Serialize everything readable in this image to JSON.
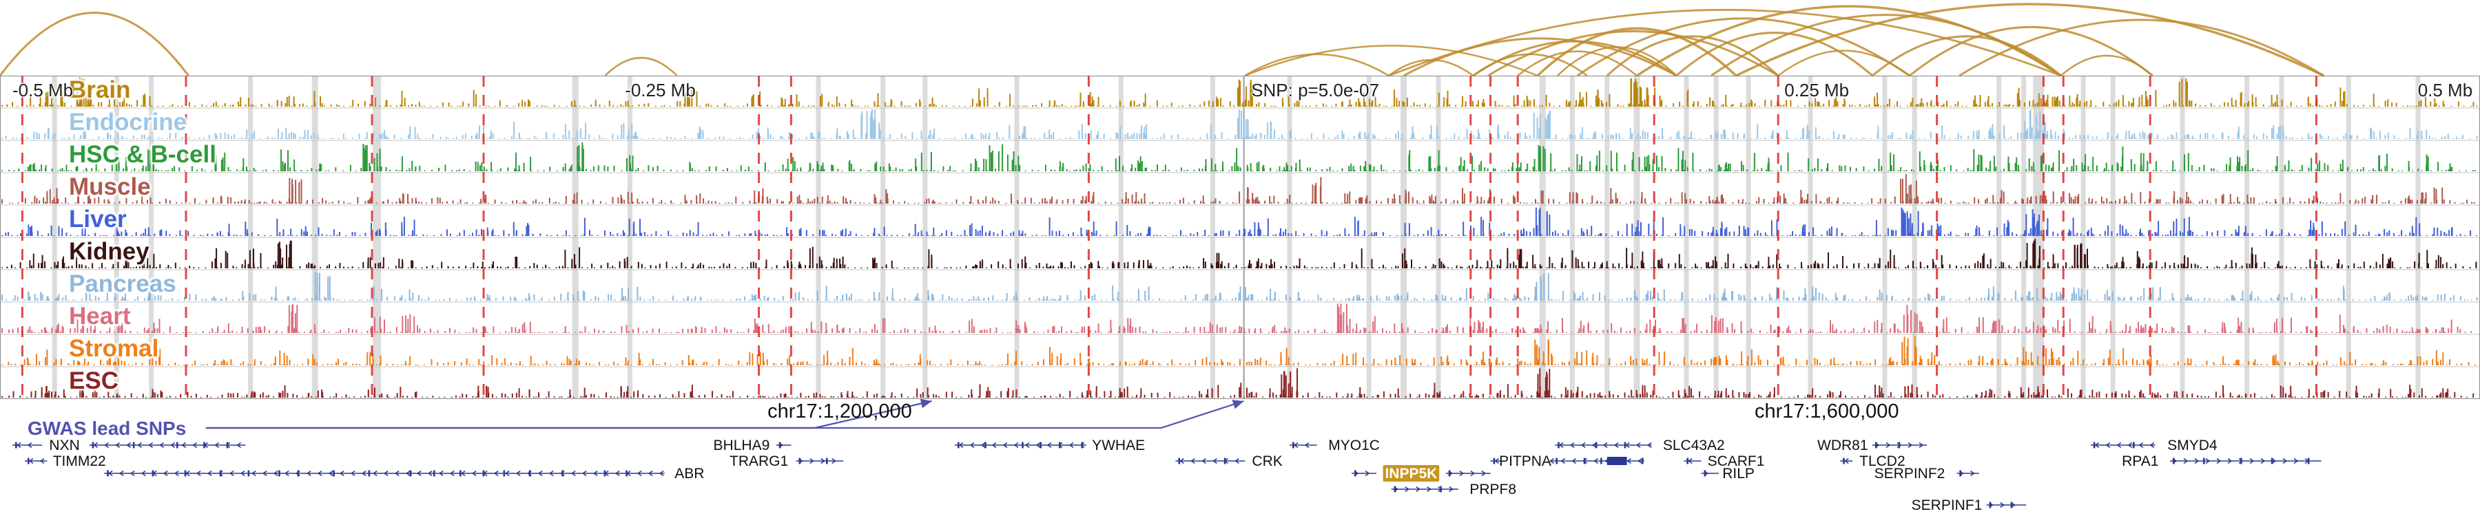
{
  "chart_data": {
    "type": "genome-browser",
    "seed": 11,
    "colors": {
      "arc": "#BE8C2E",
      "red_line": "#E03434",
      "gray_band": "rgba(128,128,128,0.28)",
      "snp_line": "#9a9a9a",
      "separator": "#c3c3c3",
      "frame": "#888888",
      "gene": "#2B3890",
      "highlight": "#C8951E",
      "text": "#111111",
      "gwas": "#5353AE"
    },
    "axis_labels": [
      {
        "text": "-0.5 Mb",
        "x": 0.005,
        "align": "left"
      },
      {
        "text": "-0.25 Mb",
        "x": 0.252,
        "align": "left"
      },
      {
        "text": "SNP: p=5.0e-07",
        "x": 0.5045,
        "align": "left"
      },
      {
        "text": "0.25 Mb",
        "x": 0.7195,
        "align": "left"
      },
      {
        "text": "0.5 Mb",
        "x": 0.997,
        "align": "right"
      }
    ],
    "snp_line_x": 0.5015,
    "tracks": [
      {
        "name": "Brain",
        "color": "#B8860B",
        "intensity": 0.75,
        "strong": [
          0.033,
          0.502,
          0.661,
          0.88
        ]
      },
      {
        "name": "Endocrine",
        "color": "#9CC7E6",
        "intensity": 0.7,
        "strong": [
          0.35,
          0.502,
          0.622,
          0.82
        ]
      },
      {
        "name": "HSC & B-cell",
        "color": "#2E9B3A",
        "intensity": 1.0,
        "strong": [
          0.15,
          0.235,
          0.402,
          0.622
        ]
      },
      {
        "name": "Muscle",
        "color": "#AE5A4C",
        "intensity": 0.65,
        "strong": [
          0.12,
          0.53,
          0.77
        ]
      },
      {
        "name": "Liver",
        "color": "#4161D8",
        "intensity": 0.8,
        "strong": [
          0.622,
          0.77,
          0.82
        ]
      },
      {
        "name": "Kidney",
        "color": "#3A1412",
        "intensity": 0.85,
        "strong": [
          0.115,
          0.82,
          0.84
        ]
      },
      {
        "name": "Pancreas",
        "color": "#8FB8DC",
        "intensity": 0.6,
        "strong": [
          0.13,
          0.622
        ]
      },
      {
        "name": "Heart",
        "color": "#DB6E7E",
        "intensity": 0.7,
        "strong": [
          0.12,
          0.54,
          0.77
        ]
      },
      {
        "name": "Stromal",
        "color": "#F07E18",
        "intensity": 0.7,
        "strong": [
          0.622,
          0.77
        ]
      },
      {
        "name": "ESC",
        "color": "#8E2323",
        "intensity": 0.6,
        "strong": [
          0.52,
          0.622
        ]
      }
    ],
    "arcs": [
      {
        "x1": 0.0,
        "x2": 0.076,
        "h": 0.88,
        "w": 3
      },
      {
        "x1": 0.244,
        "x2": 0.273,
        "h": 0.25,
        "w": 2.5
      },
      {
        "x1": 0.502,
        "x2": 0.56,
        "h": 0.3,
        "w": 2.5
      },
      {
        "x1": 0.502,
        "x2": 0.62,
        "h": 0.42,
        "w": 2.5
      },
      {
        "x1": 0.56,
        "x2": 0.594,
        "h": 0.22,
        "w": 2.5
      },
      {
        "x1": 0.566,
        "x2": 0.676,
        "h": 0.52,
        "w": 3
      },
      {
        "x1": 0.594,
        "x2": 0.64,
        "h": 0.3,
        "w": 2.5
      },
      {
        "x1": 0.594,
        "x2": 0.676,
        "h": 0.48,
        "w": 3
      },
      {
        "x1": 0.6,
        "x2": 0.717,
        "h": 0.62,
        "w": 3
      },
      {
        "x1": 0.612,
        "x2": 0.66,
        "h": 0.34,
        "w": 2.5
      },
      {
        "x1": 0.62,
        "x2": 0.7,
        "h": 0.66,
        "w": 3.5
      },
      {
        "x1": 0.628,
        "x2": 0.676,
        "h": 0.4,
        "w": 2.5
      },
      {
        "x1": 0.636,
        "x2": 0.77,
        "h": 0.8,
        "w": 3
      },
      {
        "x1": 0.648,
        "x2": 0.717,
        "h": 0.55,
        "w": 3
      },
      {
        "x1": 0.66,
        "x2": 0.831,
        "h": 0.97,
        "w": 3.5
      },
      {
        "x1": 0.676,
        "x2": 0.755,
        "h": 0.6,
        "w": 3
      },
      {
        "x1": 0.69,
        "x2": 0.831,
        "h": 0.85,
        "w": 3
      },
      {
        "x1": 0.7,
        "x2": 0.937,
        "h": 1.0,
        "w": 3.5
      },
      {
        "x1": 0.717,
        "x2": 0.77,
        "h": 0.35,
        "w": 2.5
      },
      {
        "x1": 0.755,
        "x2": 0.831,
        "h": 0.55,
        "w": 3
      },
      {
        "x1": 0.77,
        "x2": 0.868,
        "h": 0.68,
        "w": 3
      },
      {
        "x1": 0.79,
        "x2": 0.937,
        "h": 0.78,
        "w": 3
      },
      {
        "x1": 0.831,
        "x2": 0.868,
        "h": 0.28,
        "w": 2.5
      },
      {
        "x1": 0.56,
        "x2": 0.831,
        "h": 0.92,
        "w": 2.8
      }
    ],
    "red_lines": [
      0.009,
      0.075,
      0.15,
      0.195,
      0.306,
      0.319,
      0.439,
      0.593,
      0.601,
      0.612,
      0.667,
      0.717,
      0.781,
      0.824,
      0.832,
      0.867,
      0.934
    ],
    "gray_lines": [
      [
        0.022,
        7
      ],
      [
        0.047,
        7
      ],
      [
        0.061,
        7
      ],
      [
        0.101,
        7
      ],
      [
        0.127,
        9
      ],
      [
        0.152,
        12
      ],
      [
        0.232,
        9
      ],
      [
        0.254,
        7
      ],
      [
        0.33,
        7
      ],
      [
        0.356,
        7
      ],
      [
        0.373,
        7
      ],
      [
        0.41,
        7
      ],
      [
        0.452,
        7
      ],
      [
        0.489,
        7
      ],
      [
        0.52,
        7
      ],
      [
        0.552,
        7
      ],
      [
        0.566,
        9
      ],
      [
        0.58,
        7
      ],
      [
        0.622,
        9
      ],
      [
        0.634,
        7
      ],
      [
        0.648,
        7
      ],
      [
        0.66,
        9
      ],
      [
        0.68,
        7
      ],
      [
        0.692,
        7
      ],
      [
        0.705,
        7
      ],
      [
        0.73,
        7
      ],
      [
        0.76,
        7
      ],
      [
        0.772,
        7
      ],
      [
        0.806,
        7
      ],
      [
        0.816,
        7
      ],
      [
        0.822,
        16
      ],
      [
        0.84,
        7
      ],
      [
        0.852,
        7
      ],
      [
        0.88,
        7
      ],
      [
        0.906,
        7
      ],
      [
        0.92,
        7
      ],
      [
        0.947,
        7
      ],
      [
        0.975,
        7
      ]
    ],
    "extra_peaks": [
      0.015,
      0.035,
      0.09,
      0.115,
      0.165,
      0.195,
      0.21,
      0.28,
      0.306,
      0.319,
      0.34,
      0.395,
      0.425,
      0.439,
      0.46,
      0.502,
      0.51,
      0.545,
      0.593,
      0.601,
      0.612,
      0.64,
      0.667,
      0.695,
      0.717,
      0.74,
      0.781,
      0.8,
      0.824,
      0.832,
      0.86,
      0.867,
      0.9,
      0.934,
      0.96,
      0.985
    ],
    "coordinates": [
      {
        "text": "chr17:1,200,000",
        "x": 0.3386
      },
      {
        "text": "chr17:1,600,000",
        "x": 0.7366
      }
    ],
    "gwas": {
      "label": "GWAS lead SNPs",
      "line_start_x": 0.083,
      "arrow_x": [
        0.3757,
        0.5015
      ]
    },
    "genes": [
      {
        "name": "NXN",
        "row": 0,
        "dir": "left",
        "segs": [
          [
            0.005,
            0.017
          ],
          [
            0.036,
            0.099
          ]
        ],
        "label_x": 0.026
      },
      {
        "name": "TIMM22",
        "row": 1,
        "dir": "left",
        "segs": [
          [
            0.01,
            0.019
          ]
        ],
        "label_x": 0.032
      },
      {
        "name": "ABR",
        "row": 2,
        "dir": "left",
        "segs": [
          [
            0.042,
            0.268
          ]
        ],
        "label_x": 0.278
      },
      {
        "name": "BHLHA9",
        "row": 0,
        "dir": "right",
        "segs": [
          [
            0.313,
            0.319
          ]
        ],
        "label_x": 0.299
      },
      {
        "name": "TRARG1",
        "row": 1,
        "dir": "right",
        "segs": [
          [
            0.321,
            0.34
          ]
        ],
        "label_x": 0.306
      },
      {
        "name": "YWHAE",
        "row": 0,
        "dir": "left",
        "segs": [
          [
            0.385,
            0.438
          ]
        ],
        "label_x": 0.451
      },
      {
        "name": "CRK",
        "row": 1,
        "dir": "left",
        "segs": [
          [
            0.474,
            0.502
          ]
        ],
        "label_x": 0.511
      },
      {
        "name": "MYO1C",
        "row": 0,
        "dir": "left",
        "segs": [
          [
            0.52,
            0.531
          ]
        ],
        "label_x": 0.546
      },
      {
        "name": "INPP5K",
        "row": 2,
        "dir": "right",
        "segs": [
          [
            0.545,
            0.555
          ],
          [
            0.583,
            0.601
          ]
        ],
        "label_x": 0.569,
        "highlight": true
      },
      {
        "name": "PITPNA",
        "row": 1,
        "dir": "left",
        "segs": [
          [
            0.601,
            0.663
          ]
        ],
        "box": [
          0.648,
          0.656
        ],
        "label_x": 0.615
      },
      {
        "name": "SLC43A2",
        "row": 0,
        "dir": "left",
        "segs": [
          [
            0.627,
            0.666
          ]
        ],
        "label_x": 0.683
      },
      {
        "name": "SCARF1",
        "row": 1,
        "dir": "left",
        "segs": [
          [
            0.679,
            0.686
          ]
        ],
        "label_x": 0.7
      },
      {
        "name": "RILP",
        "row": 2,
        "dir": "right",
        "segs": [
          [
            0.686,
            0.693
          ]
        ],
        "label_x": 0.701
      },
      {
        "name": "PRPF8",
        "row": 3,
        "dir": "right",
        "segs": [
          [
            0.561,
            0.588
          ]
        ],
        "label_x": 0.602
      },
      {
        "name": "WDR81",
        "row": 0,
        "dir": "right",
        "segs": [
          [
            0.755,
            0.777
          ]
        ],
        "label_x": 0.743
      },
      {
        "name": "TLCD2",
        "row": 1,
        "dir": "left",
        "segs": [
          [
            0.742,
            0.747
          ]
        ],
        "label_x": 0.759
      },
      {
        "name": "SERPINF2",
        "row": 2,
        "dir": "right",
        "segs": [
          [
            0.789,
            0.798
          ]
        ],
        "label_x": 0.77
      },
      {
        "name": "SERPINF1",
        "row": 4,
        "dir": "right",
        "segs": [
          [
            0.801,
            0.817
          ]
        ],
        "label_x": 0.785
      },
      {
        "name": "SMYD4",
        "row": 0,
        "dir": "left",
        "segs": [
          [
            0.843,
            0.869
          ]
        ],
        "label_x": 0.884
      },
      {
        "name": "RPA1",
        "row": 1,
        "dir": "right",
        "segs": [
          [
            0.875,
            0.936
          ]
        ],
        "label_x": 0.863
      }
    ]
  }
}
